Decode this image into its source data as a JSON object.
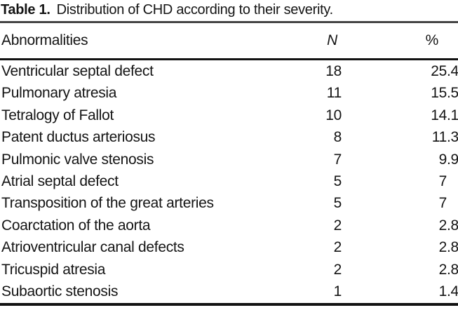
{
  "title": {
    "label": "Table 1.",
    "text": "Distribution of CHD according to their severity."
  },
  "table": {
    "columns": [
      "Abnormalities",
      "N",
      "%"
    ],
    "rows": [
      {
        "abnormality": "Ventricular septal defect",
        "n": "18",
        "pct": "25.4"
      },
      {
        "abnormality": "Pulmonary atresia",
        "n": "11",
        "pct": "15.5"
      },
      {
        "abnormality": "Tetralogy of Fallot",
        "n": "10",
        "pct": "14.1"
      },
      {
        "abnormality": "Patent ductus arteriosus",
        "n": "8",
        "pct": "11.3"
      },
      {
        "abnormality": "Pulmonic valve stenosis",
        "n": "7",
        "pct": "9.9"
      },
      {
        "abnormality": "Atrial septal defect",
        "n": "5",
        "pct": "7"
      },
      {
        "abnormality": "Transposition of the great arteries",
        "n": "5",
        "pct": "7"
      },
      {
        "abnormality": "Coarctation of the aorta",
        "n": "2",
        "pct": "2.8"
      },
      {
        "abnormality": "Atrioventricular canal defects",
        "n": "2",
        "pct": "2.8"
      },
      {
        "abnormality": "Tricuspid atresia",
        "n": "2",
        "pct": "2.8"
      },
      {
        "abnormality": "Subaortic stenosis",
        "n": "1",
        "pct": "1.4"
      }
    ]
  },
  "colors": {
    "background": "#ffffff",
    "text": "#141414",
    "rule_top": "#454545",
    "rule_dark": "#121212"
  }
}
